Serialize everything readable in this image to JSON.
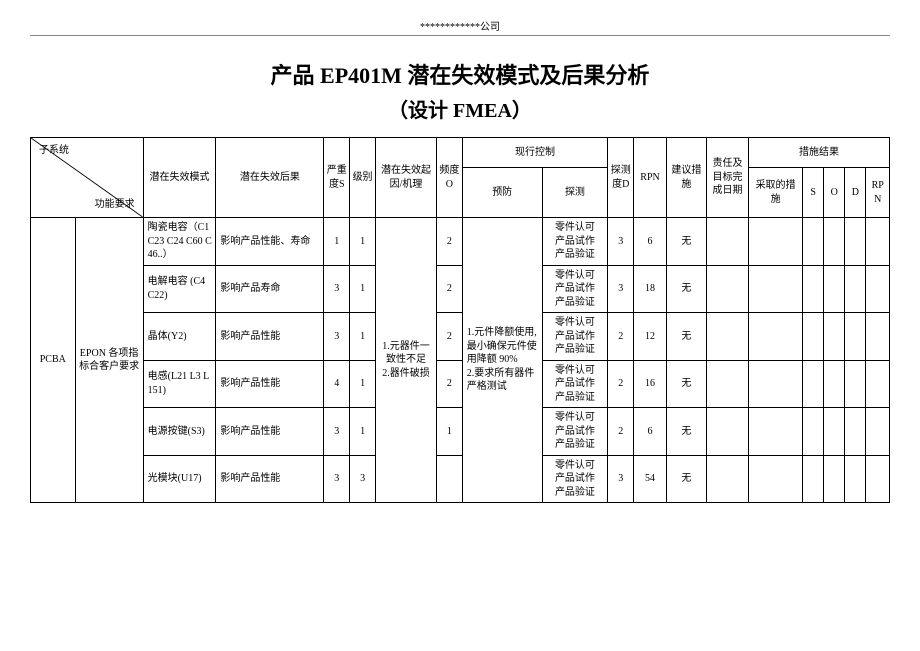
{
  "header_company": "************公司",
  "title_line1": "产品 EP401M 潜在失效模式及后果分析",
  "title_line2": "（设计 FMEA）",
  "diag_top": "子系统",
  "diag_bottom": "功能要求",
  "columns": {
    "failure_mode": "潜在失效模式",
    "failure_effect": "潜在失效后果",
    "severity": "严重度S",
    "class": "级别",
    "cause": "潜在失效起因/机理",
    "occurrence": "频度O",
    "current_control": "现行控制",
    "prevent": "预防",
    "detect": "探测",
    "detection": "探测度D",
    "rpn": "RPN",
    "rec_action": "建议措施",
    "resp_date": "责任及目标完成日期",
    "action_results": "措施结果",
    "action_taken": "采取的措施",
    "s": "S",
    "o": "O",
    "d": "D",
    "rpn2": "RPN"
  },
  "col1": "PCBA",
  "col2": "EPON 各项指标合客户要求",
  "cause_shared": "1.元器件一致性不足　2.器件破损",
  "prevent_shared": "1.元件降额使用,最小确保元件使用降额 90%\n2.要求所有器件严格测试",
  "detect_val": "零件认可\n产品试作\n产品验证",
  "rows": [
    {
      "mode": "陶瓷电容（C1 C23 C24 C60 C46..）",
      "effect": "影响产品性能、寿命",
      "s": "1",
      "cls": "1",
      "o": "2",
      "d": "3",
      "rpn": "6",
      "rec": "无"
    },
    {
      "mode": "电解电容 (C4 C22)",
      "effect": "影响产品寿命",
      "s": "3",
      "cls": "1",
      "o": "2",
      "d": "3",
      "rpn": "18",
      "rec": "无"
    },
    {
      "mode": "晶体(Y2)",
      "effect": "影响产品性能",
      "s": "3",
      "cls": "1",
      "o": "2",
      "d": "2",
      "rpn": "12",
      "rec": "无"
    },
    {
      "mode": "电感(L21 L3 L151)",
      "effect": "影响产品性能",
      "s": "4",
      "cls": "1",
      "o": "2",
      "d": "2",
      "rpn": "16",
      "rec": "无"
    },
    {
      "mode": "电源按键(S3)",
      "effect": "影响产品性能",
      "s": "3",
      "cls": "1",
      "o": "1",
      "d": "2",
      "rpn": "6",
      "rec": "无"
    },
    {
      "mode": "光模块(U17)",
      "effect": "影响产品性能",
      "s": "3",
      "cls": "3",
      "o": "",
      "d": "3",
      "rpn": "54",
      "rec": "无"
    }
  ]
}
